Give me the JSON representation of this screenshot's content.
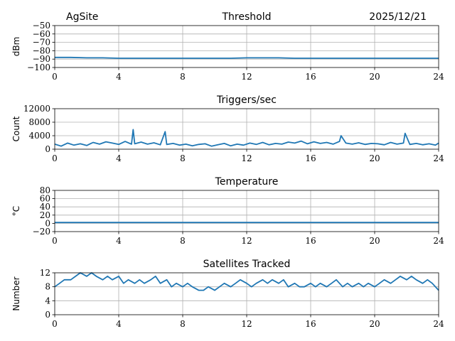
{
  "header": {
    "site": "AgSite",
    "date": "2025/12/21"
  },
  "colors": {
    "series": "#1f77b4",
    "grid": "#b0b0b0",
    "axis": "#000000"
  },
  "chart_data": [
    {
      "type": "line",
      "title": "Threshold",
      "xlabel": "",
      "ylabel": "dBm",
      "xlim": [
        0,
        24
      ],
      "ylim": [
        -100,
        -50
      ],
      "xticks": [
        0,
        4,
        8,
        12,
        16,
        20,
        24
      ],
      "yticks": [
        -100,
        -90,
        -80,
        -70,
        -60,
        -50
      ],
      "grid": true,
      "x": [
        0,
        1,
        2,
        3,
        4,
        5,
        6,
        7,
        8,
        9,
        10,
        11,
        12,
        13,
        14,
        15,
        16,
        17,
        18,
        19,
        20,
        21,
        22,
        23,
        24
      ],
      "y": [
        -88,
        -88,
        -88.5,
        -88.5,
        -89,
        -89,
        -89,
        -89,
        -89,
        -89,
        -89,
        -89,
        -88.5,
        -88.5,
        -88.5,
        -89,
        -89,
        -89,
        -89,
        -89,
        -89,
        -89,
        -89,
        -89,
        -89
      ]
    },
    {
      "type": "line",
      "title": "Triggers/sec",
      "xlabel": "",
      "ylabel": "Count",
      "xlim": [
        0,
        24
      ],
      "ylim": [
        0,
        12000
      ],
      "xticks": [
        0,
        4,
        8,
        12,
        16,
        20,
        24
      ],
      "yticks": [
        0,
        4000,
        8000,
        12000
      ],
      "grid": true,
      "x": [
        0,
        0.4,
        0.8,
        1.2,
        1.6,
        2.0,
        2.4,
        2.8,
        3.2,
        3.6,
        4.0,
        4.4,
        4.8,
        4.9,
        5.0,
        5.4,
        5.8,
        6.2,
        6.6,
        6.9,
        7.0,
        7.4,
        7.8,
        8.2,
        8.6,
        9.0,
        9.4,
        9.8,
        10.2,
        10.6,
        11.0,
        11.4,
        11.8,
        12.2,
        12.6,
        13.0,
        13.4,
        13.8,
        14.2,
        14.6,
        15.0,
        15.4,
        15.8,
        16.2,
        16.6,
        17.0,
        17.4,
        17.8,
        17.9,
        18.2,
        18.6,
        19.0,
        19.4,
        19.8,
        20.2,
        20.6,
        21.0,
        21.4,
        21.8,
        21.9,
        22.2,
        22.6,
        23.0,
        23.4,
        23.8,
        24.0
      ],
      "y": [
        1500,
        900,
        1800,
        1200,
        1600,
        1100,
        2000,
        1500,
        2200,
        1800,
        1400,
        2300,
        1500,
        5800,
        1600,
        2100,
        1500,
        1900,
        1300,
        5200,
        1400,
        1700,
        1200,
        1500,
        1000,
        1400,
        1600,
        900,
        1300,
        1700,
        1000,
        1500,
        1200,
        1800,
        1400,
        2000,
        1300,
        1700,
        1500,
        2100,
        1800,
        2400,
        1600,
        2200,
        1700,
        2000,
        1500,
        2300,
        4000,
        1800,
        1500,
        1900,
        1400,
        1700,
        1600,
        1300,
        2000,
        1500,
        1800,
        4700,
        1400,
        1700,
        1300,
        1600,
        1200,
        1800
      ]
    },
    {
      "type": "line",
      "title": "Temperature",
      "xlabel": "",
      "ylabel": "°C",
      "xlim": [
        0,
        24
      ],
      "ylim": [
        -20,
        80
      ],
      "xticks": [
        0,
        4,
        8,
        12,
        16,
        20,
        24
      ],
      "yticks": [
        -20,
        0,
        20,
        40,
        60,
        80
      ],
      "grid": true,
      "x": [
        0,
        24
      ],
      "y": [
        2,
        2
      ]
    },
    {
      "type": "line",
      "title": "Satellites Tracked",
      "xlabel": "",
      "ylabel": "Number",
      "xlim": [
        0,
        24
      ],
      "ylim": [
        0,
        12
      ],
      "xticks": [
        0,
        4,
        8,
        12,
        16,
        20,
        24
      ],
      "yticks": [
        0,
        4,
        8,
        12
      ],
      "grid": true,
      "x": [
        0,
        0.3,
        0.6,
        1.0,
        1.3,
        1.6,
        2.0,
        2.3,
        2.6,
        3.0,
        3.3,
        3.6,
        4.0,
        4.3,
        4.6,
        5.0,
        5.3,
        5.6,
        6.0,
        6.3,
        6.6,
        7.0,
        7.3,
        7.6,
        8.0,
        8.3,
        8.6,
        9.0,
        9.3,
        9.6,
        10.0,
        10.3,
        10.6,
        11.0,
        11.3,
        11.6,
        12.0,
        12.3,
        12.6,
        13.0,
        13.3,
        13.6,
        14.0,
        14.3,
        14.6,
        15.0,
        15.3,
        15.6,
        16.0,
        16.3,
        16.6,
        17.0,
        17.3,
        17.6,
        18.0,
        18.3,
        18.6,
        19.0,
        19.3,
        19.6,
        20.0,
        20.3,
        20.6,
        21.0,
        21.3,
        21.6,
        22.0,
        22.3,
        22.6,
        23.0,
        23.3,
        23.6,
        24.0
      ],
      "y": [
        8,
        9,
        10,
        10,
        11,
        12,
        11,
        12,
        11,
        10,
        11,
        10,
        11,
        9,
        10,
        9,
        10,
        9,
        10,
        11,
        9,
        10,
        8,
        9,
        8,
        9,
        8,
        7,
        7,
        8,
        7,
        8,
        9,
        8,
        9,
        10,
        9,
        8,
        9,
        10,
        9,
        10,
        9,
        10,
        8,
        9,
        8,
        8,
        9,
        8,
        9,
        8,
        9,
        10,
        8,
        9,
        8,
        9,
        8,
        9,
        8,
        9,
        10,
        9,
        10,
        11,
        10,
        11,
        10,
        9,
        10,
        9,
        7
      ]
    }
  ]
}
